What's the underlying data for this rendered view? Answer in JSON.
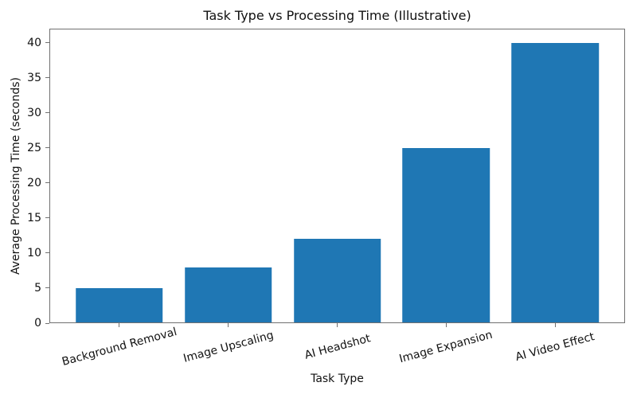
{
  "chart_data": {
    "type": "bar",
    "title": "Task Type vs Processing Time (Illustrative)",
    "xlabel": "Task Type",
    "ylabel": "Average Processing Time (seconds)",
    "categories": [
      "Background Removal",
      "Image Upscaling",
      "AI Headshot",
      "Image Expansion",
      "AI Video Effect"
    ],
    "values": [
      5,
      8,
      12,
      25,
      40
    ],
    "yticks": [
      0,
      5,
      10,
      15,
      20,
      25,
      30,
      35,
      40
    ],
    "ylim": [
      0,
      42
    ],
    "bar_color": "#1f77b4",
    "axis_color": "#707070",
    "text_color": "#111111",
    "background_color": "#ffffff",
    "bar_rel_width": 0.8,
    "x_margin_frac": 0.05,
    "tick_label_rotation_deg": 15,
    "grid": false,
    "legend": "none"
  }
}
